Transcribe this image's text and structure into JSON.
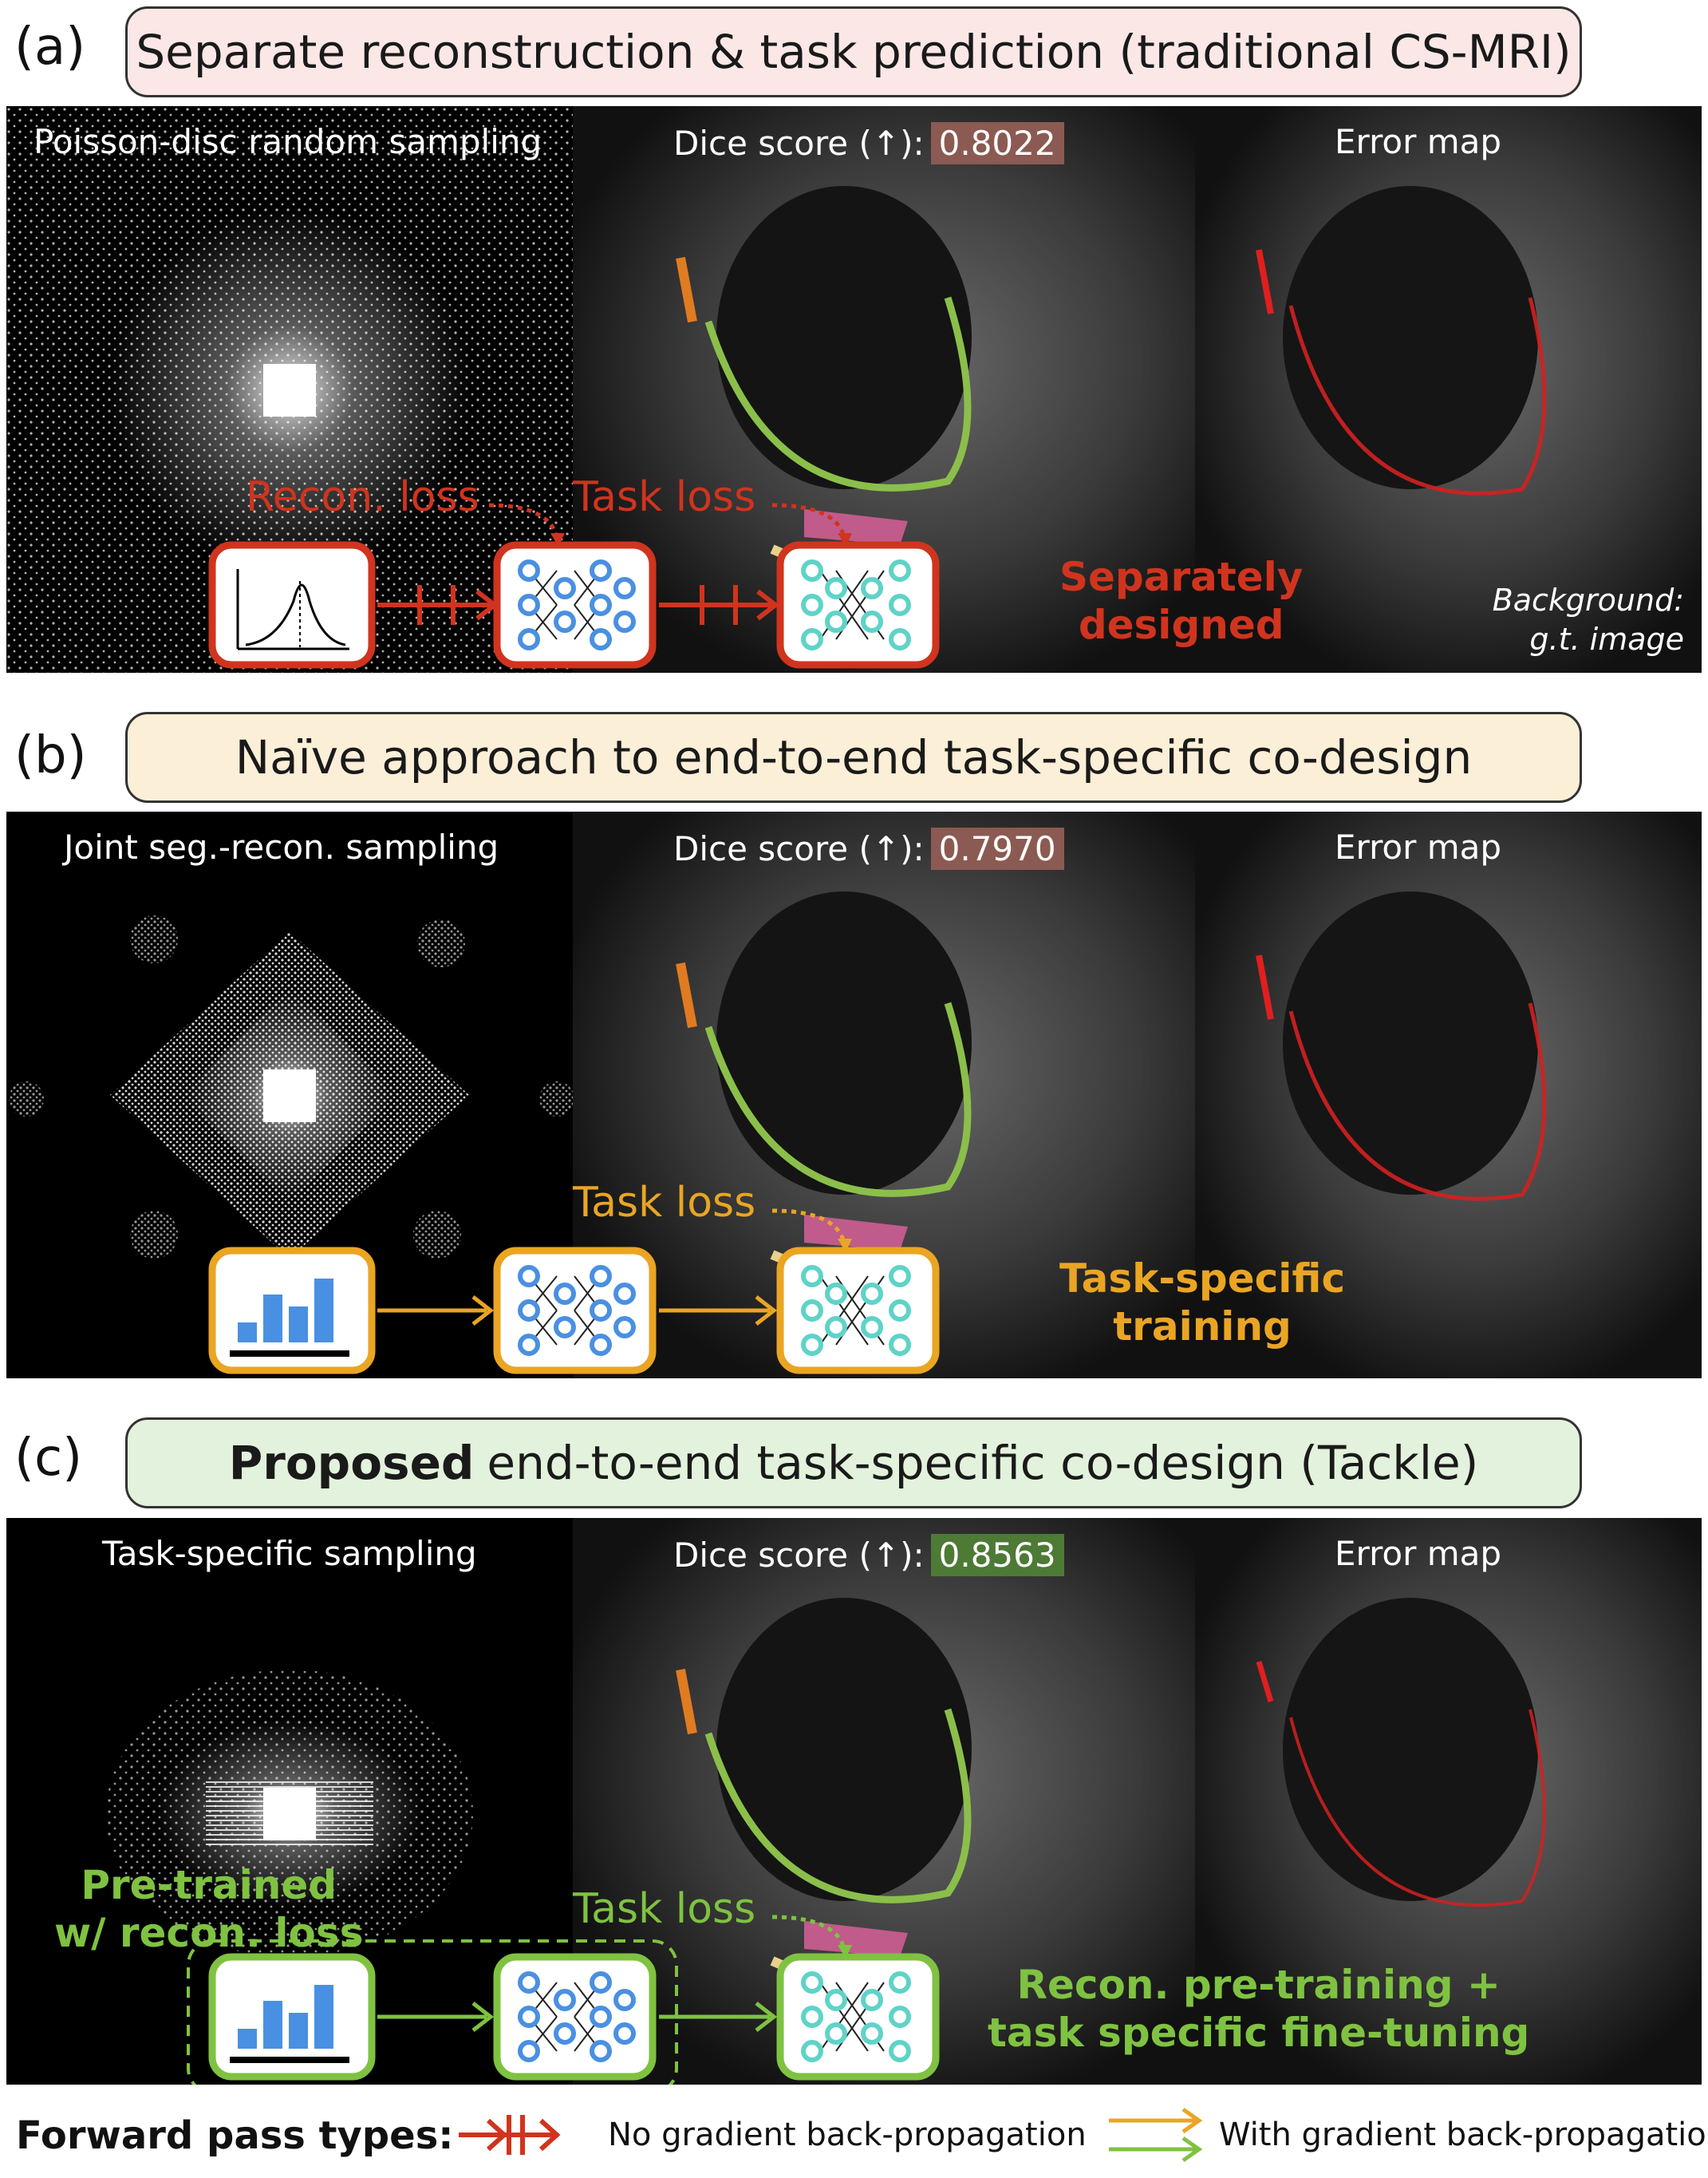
{
  "panels": [
    {
      "letter": "(a)",
      "title": "Separate reconstruction & task prediction (traditional CS-MRI)",
      "sampling_caption": "Poisson-disc random sampling",
      "dice_label": "Dice score (↑):",
      "dice_value": "0.8022",
      "dice_color": "#8b5a52",
      "error_caption": "Error map",
      "loss_labels": [
        "Recon. loss",
        "Task loss"
      ],
      "note": [
        "Separately",
        "designed"
      ],
      "background_note": [
        "Background:",
        "g.t. image"
      ],
      "accent": "#d0341e",
      "title_bg": "#fbe8e6"
    },
    {
      "letter": "(b)",
      "title": "Naïve approach to end-to-end task-specific co-design",
      "sampling_caption": "Joint seg.-recon. sampling",
      "dice_label": "Dice score (↑):",
      "dice_value": "0.7970",
      "dice_color": "#8b5a52",
      "error_caption": "Error map",
      "loss_labels": [
        "Task loss"
      ],
      "note": [
        "Task-specific",
        "training"
      ],
      "accent": "#eaa523",
      "title_bg": "#fcefd7"
    },
    {
      "letter": "(c)",
      "title_bold": "Proposed",
      "title": "end-to-end task-specific co-design (Tackle)",
      "sampling_caption": "Task-specific sampling",
      "dice_label": "Dice score (↑):",
      "dice_value": "0.8563",
      "dice_color": "#4d7a35",
      "error_caption": "Error map",
      "loss_labels": [
        "Task loss"
      ],
      "pretrain_note": [
        "Pre-trained",
        "w/ recon. loss"
      ],
      "note": [
        "Recon. pre-training +",
        "task specific fine-tuning"
      ],
      "accent": "#7fc241",
      "title_bg": "#e3f2dc"
    }
  ],
  "legend": {
    "title": "Forward pass types:",
    "no_grad": "No gradient back-propagation",
    "with_grad": "With gradient back-propagation"
  },
  "colors": {
    "red": "#d0341e",
    "orange": "#eaa523",
    "green": "#7fc241",
    "node_blue": "#4a90e2",
    "node_teal": "#5fd3c8"
  }
}
